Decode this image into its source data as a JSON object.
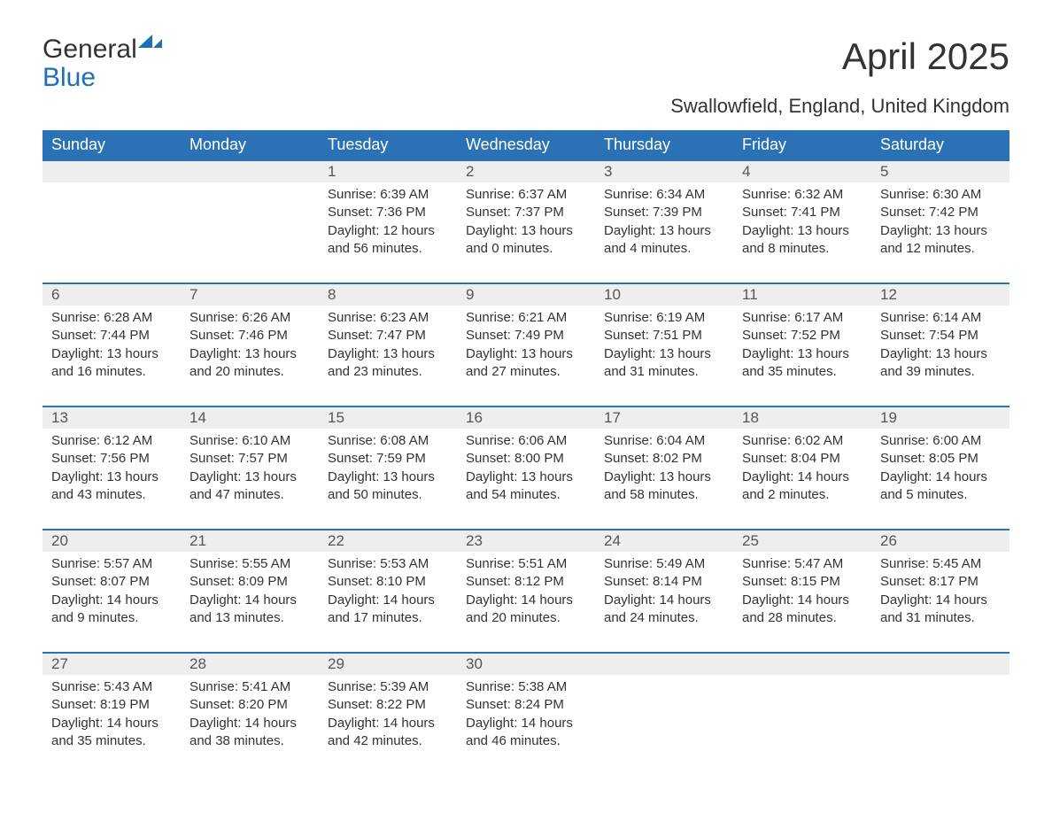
{
  "logo": {
    "word1": "General",
    "word2": "Blue",
    "accent_color": "#1f6fb2"
  },
  "title": "April 2025",
  "subtitle": "Swallowfield, England, United Kingdom",
  "colors": {
    "header_bg": "#2a72b5",
    "header_text": "#ffffff",
    "datenum_bg": "#eeeeee",
    "cell_text": "#333333",
    "row_border": "#2a72b5",
    "page_bg": "#ffffff"
  },
  "typography": {
    "title_size_pt": 32,
    "subtitle_size_pt": 17,
    "weekday_size_pt": 14,
    "datenum_size_pt": 13,
    "body_size_pt": 12,
    "font_family": "Segoe UI / Arial"
  },
  "weekdays": [
    "Sunday",
    "Monday",
    "Tuesday",
    "Wednesday",
    "Thursday",
    "Friday",
    "Saturday"
  ],
  "weeks": [
    [
      null,
      null,
      {
        "n": "1",
        "sunrise": "Sunrise: 6:39 AM",
        "sunset": "Sunset: 7:36 PM",
        "dl1": "Daylight: 12 hours",
        "dl2": "and 56 minutes."
      },
      {
        "n": "2",
        "sunrise": "Sunrise: 6:37 AM",
        "sunset": "Sunset: 7:37 PM",
        "dl1": "Daylight: 13 hours",
        "dl2": "and 0 minutes."
      },
      {
        "n": "3",
        "sunrise": "Sunrise: 6:34 AM",
        "sunset": "Sunset: 7:39 PM",
        "dl1": "Daylight: 13 hours",
        "dl2": "and 4 minutes."
      },
      {
        "n": "4",
        "sunrise": "Sunrise: 6:32 AM",
        "sunset": "Sunset: 7:41 PM",
        "dl1": "Daylight: 13 hours",
        "dl2": "and 8 minutes."
      },
      {
        "n": "5",
        "sunrise": "Sunrise: 6:30 AM",
        "sunset": "Sunset: 7:42 PM",
        "dl1": "Daylight: 13 hours",
        "dl2": "and 12 minutes."
      }
    ],
    [
      {
        "n": "6",
        "sunrise": "Sunrise: 6:28 AM",
        "sunset": "Sunset: 7:44 PM",
        "dl1": "Daylight: 13 hours",
        "dl2": "and 16 minutes."
      },
      {
        "n": "7",
        "sunrise": "Sunrise: 6:26 AM",
        "sunset": "Sunset: 7:46 PM",
        "dl1": "Daylight: 13 hours",
        "dl2": "and 20 minutes."
      },
      {
        "n": "8",
        "sunrise": "Sunrise: 6:23 AM",
        "sunset": "Sunset: 7:47 PM",
        "dl1": "Daylight: 13 hours",
        "dl2": "and 23 minutes."
      },
      {
        "n": "9",
        "sunrise": "Sunrise: 6:21 AM",
        "sunset": "Sunset: 7:49 PM",
        "dl1": "Daylight: 13 hours",
        "dl2": "and 27 minutes."
      },
      {
        "n": "10",
        "sunrise": "Sunrise: 6:19 AM",
        "sunset": "Sunset: 7:51 PM",
        "dl1": "Daylight: 13 hours",
        "dl2": "and 31 minutes."
      },
      {
        "n": "11",
        "sunrise": "Sunrise: 6:17 AM",
        "sunset": "Sunset: 7:52 PM",
        "dl1": "Daylight: 13 hours",
        "dl2": "and 35 minutes."
      },
      {
        "n": "12",
        "sunrise": "Sunrise: 6:14 AM",
        "sunset": "Sunset: 7:54 PM",
        "dl1": "Daylight: 13 hours",
        "dl2": "and 39 minutes."
      }
    ],
    [
      {
        "n": "13",
        "sunrise": "Sunrise: 6:12 AM",
        "sunset": "Sunset: 7:56 PM",
        "dl1": "Daylight: 13 hours",
        "dl2": "and 43 minutes."
      },
      {
        "n": "14",
        "sunrise": "Sunrise: 6:10 AM",
        "sunset": "Sunset: 7:57 PM",
        "dl1": "Daylight: 13 hours",
        "dl2": "and 47 minutes."
      },
      {
        "n": "15",
        "sunrise": "Sunrise: 6:08 AM",
        "sunset": "Sunset: 7:59 PM",
        "dl1": "Daylight: 13 hours",
        "dl2": "and 50 minutes."
      },
      {
        "n": "16",
        "sunrise": "Sunrise: 6:06 AM",
        "sunset": "Sunset: 8:00 PM",
        "dl1": "Daylight: 13 hours",
        "dl2": "and 54 minutes."
      },
      {
        "n": "17",
        "sunrise": "Sunrise: 6:04 AM",
        "sunset": "Sunset: 8:02 PM",
        "dl1": "Daylight: 13 hours",
        "dl2": "and 58 minutes."
      },
      {
        "n": "18",
        "sunrise": "Sunrise: 6:02 AM",
        "sunset": "Sunset: 8:04 PM",
        "dl1": "Daylight: 14 hours",
        "dl2": "and 2 minutes."
      },
      {
        "n": "19",
        "sunrise": "Sunrise: 6:00 AM",
        "sunset": "Sunset: 8:05 PM",
        "dl1": "Daylight: 14 hours",
        "dl2": "and 5 minutes."
      }
    ],
    [
      {
        "n": "20",
        "sunrise": "Sunrise: 5:57 AM",
        "sunset": "Sunset: 8:07 PM",
        "dl1": "Daylight: 14 hours",
        "dl2": "and 9 minutes."
      },
      {
        "n": "21",
        "sunrise": "Sunrise: 5:55 AM",
        "sunset": "Sunset: 8:09 PM",
        "dl1": "Daylight: 14 hours",
        "dl2": "and 13 minutes."
      },
      {
        "n": "22",
        "sunrise": "Sunrise: 5:53 AM",
        "sunset": "Sunset: 8:10 PM",
        "dl1": "Daylight: 14 hours",
        "dl2": "and 17 minutes."
      },
      {
        "n": "23",
        "sunrise": "Sunrise: 5:51 AM",
        "sunset": "Sunset: 8:12 PM",
        "dl1": "Daylight: 14 hours",
        "dl2": "and 20 minutes."
      },
      {
        "n": "24",
        "sunrise": "Sunrise: 5:49 AM",
        "sunset": "Sunset: 8:14 PM",
        "dl1": "Daylight: 14 hours",
        "dl2": "and 24 minutes."
      },
      {
        "n": "25",
        "sunrise": "Sunrise: 5:47 AM",
        "sunset": "Sunset: 8:15 PM",
        "dl1": "Daylight: 14 hours",
        "dl2": "and 28 minutes."
      },
      {
        "n": "26",
        "sunrise": "Sunrise: 5:45 AM",
        "sunset": "Sunset: 8:17 PM",
        "dl1": "Daylight: 14 hours",
        "dl2": "and 31 minutes."
      }
    ],
    [
      {
        "n": "27",
        "sunrise": "Sunrise: 5:43 AM",
        "sunset": "Sunset: 8:19 PM",
        "dl1": "Daylight: 14 hours",
        "dl2": "and 35 minutes."
      },
      {
        "n": "28",
        "sunrise": "Sunrise: 5:41 AM",
        "sunset": "Sunset: 8:20 PM",
        "dl1": "Daylight: 14 hours",
        "dl2": "and 38 minutes."
      },
      {
        "n": "29",
        "sunrise": "Sunrise: 5:39 AM",
        "sunset": "Sunset: 8:22 PM",
        "dl1": "Daylight: 14 hours",
        "dl2": "and 42 minutes."
      },
      {
        "n": "30",
        "sunrise": "Sunrise: 5:38 AM",
        "sunset": "Sunset: 8:24 PM",
        "dl1": "Daylight: 14 hours",
        "dl2": "and 46 minutes."
      },
      null,
      null,
      null
    ]
  ]
}
